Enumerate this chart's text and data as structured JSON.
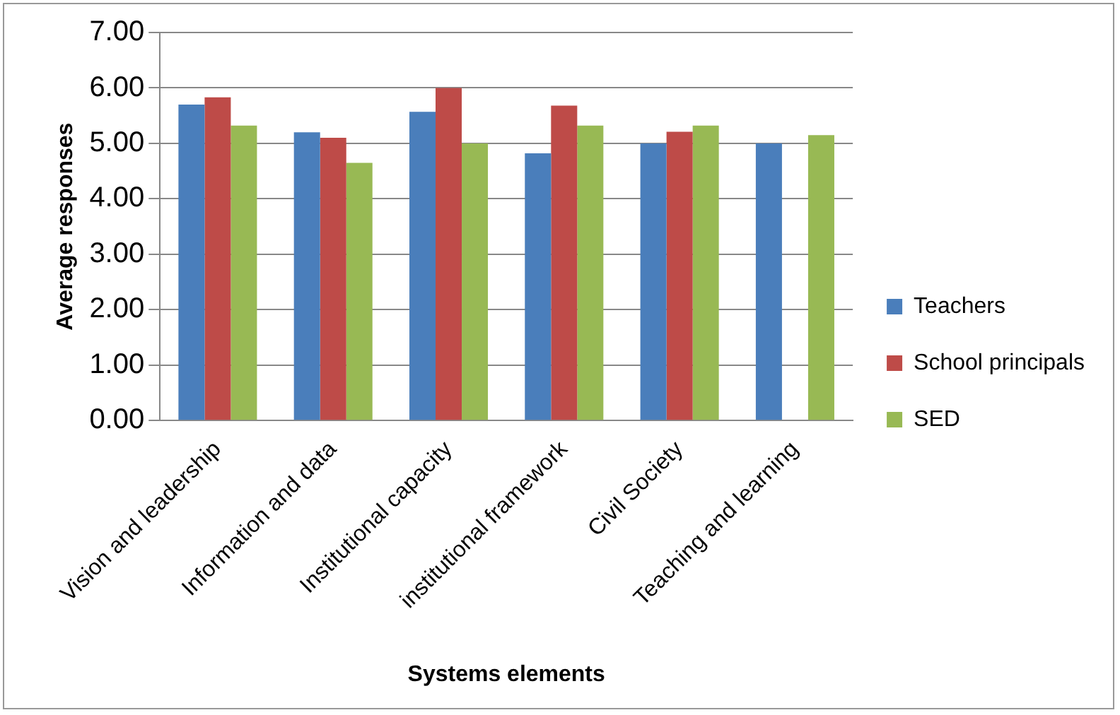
{
  "chart_data": {
    "type": "bar",
    "xlabel": "Systems elements",
    "ylabel": "Average responses",
    "categories": [
      "Vision and leadership",
      "Information and data",
      "Institutional capacity",
      "institutional framework",
      "Civil Society",
      "Teaching and learning"
    ],
    "series": [
      {
        "name": "Teachers",
        "color": "#4a7ebb",
        "values": [
          5.7,
          5.2,
          5.57,
          4.82,
          5.0,
          5.0
        ]
      },
      {
        "name": "School principals",
        "color": "#be4b48",
        "values": [
          5.83,
          5.1,
          6.0,
          5.68,
          5.21,
          null
        ]
      },
      {
        "name": "SED",
        "color": "#98b954",
        "values": [
          5.32,
          4.65,
          5.0,
          5.32,
          5.32,
          5.15
        ]
      }
    ],
    "ylim": [
      0,
      7
    ],
    "yticks": [
      {
        "value": 0,
        "label": "0.00"
      },
      {
        "value": 1,
        "label": "1.00"
      },
      {
        "value": 2,
        "label": "2.00"
      },
      {
        "value": 3,
        "label": "3.00"
      },
      {
        "value": 4,
        "label": "4.00"
      },
      {
        "value": 5,
        "label": "5.00"
      },
      {
        "value": 6,
        "label": "6.00"
      },
      {
        "value": 7,
        "label": "7.00"
      }
    ],
    "grid": "y",
    "legend": "right"
  }
}
